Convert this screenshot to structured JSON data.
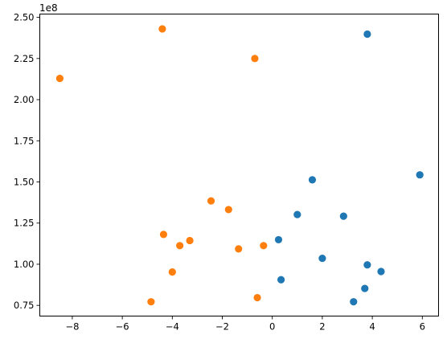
{
  "chart_data": {
    "type": "scatter",
    "title": "",
    "xlabel": "",
    "ylabel": "",
    "y_offset_label": "1e8",
    "grid": false,
    "legend": "none",
    "xlim": [
      -9.3,
      6.65
    ],
    "ylim": [
      68500000,
      252000000
    ],
    "x_ticks": [
      {
        "value": -8,
        "label": "−8"
      },
      {
        "value": -6,
        "label": "−6"
      },
      {
        "value": -4,
        "label": "−4"
      },
      {
        "value": -2,
        "label": "−2"
      },
      {
        "value": 0,
        "label": "0"
      },
      {
        "value": 2,
        "label": "2"
      },
      {
        "value": 4,
        "label": "4"
      },
      {
        "value": 6,
        "label": "6"
      }
    ],
    "y_ticks": [
      {
        "value": 75000000,
        "label": "0.75"
      },
      {
        "value": 100000000,
        "label": "1.00"
      },
      {
        "value": 125000000,
        "label": "1.25"
      },
      {
        "value": 150000000,
        "label": "1.50"
      },
      {
        "value": 175000000,
        "label": "1.75"
      },
      {
        "value": 200000000,
        "label": "2.00"
      },
      {
        "value": 225000000,
        "label": "2.25"
      },
      {
        "value": 250000000,
        "label": "2.50"
      }
    ],
    "series": [
      {
        "color": "#1f77b4",
        "points": [
          {
            "x": 3.8,
            "y": 239800000
          },
          {
            "x": 5.9,
            "y": 154300000
          },
          {
            "x": 1.6,
            "y": 151300000
          },
          {
            "x": 1.0,
            "y": 130200000
          },
          {
            "x": 2.85,
            "y": 129200000
          },
          {
            "x": 0.25,
            "y": 114900000
          },
          {
            "x": 2.0,
            "y": 103600000
          },
          {
            "x": 3.8,
            "y": 99600000
          },
          {
            "x": 4.35,
            "y": 95600000
          },
          {
            "x": 0.35,
            "y": 90600000
          },
          {
            "x": 3.7,
            "y": 85300000
          },
          {
            "x": 3.25,
            "y": 77200000
          }
        ]
      },
      {
        "color": "#ff7f0e",
        "points": [
          {
            "x": -4.4,
            "y": 243000000
          },
          {
            "x": -0.7,
            "y": 225000000
          },
          {
            "x": -8.5,
            "y": 212900000
          },
          {
            "x": -2.45,
            "y": 138500000
          },
          {
            "x": -1.75,
            "y": 133200000
          },
          {
            "x": -4.35,
            "y": 118100000
          },
          {
            "x": -3.3,
            "y": 114400000
          },
          {
            "x": -3.7,
            "y": 111300000
          },
          {
            "x": -0.35,
            "y": 111300000
          },
          {
            "x": -1.35,
            "y": 109300000
          },
          {
            "x": -4.0,
            "y": 95300000
          },
          {
            "x": -0.6,
            "y": 79700000
          },
          {
            "x": -4.85,
            "y": 77200000
          }
        ]
      }
    ]
  }
}
